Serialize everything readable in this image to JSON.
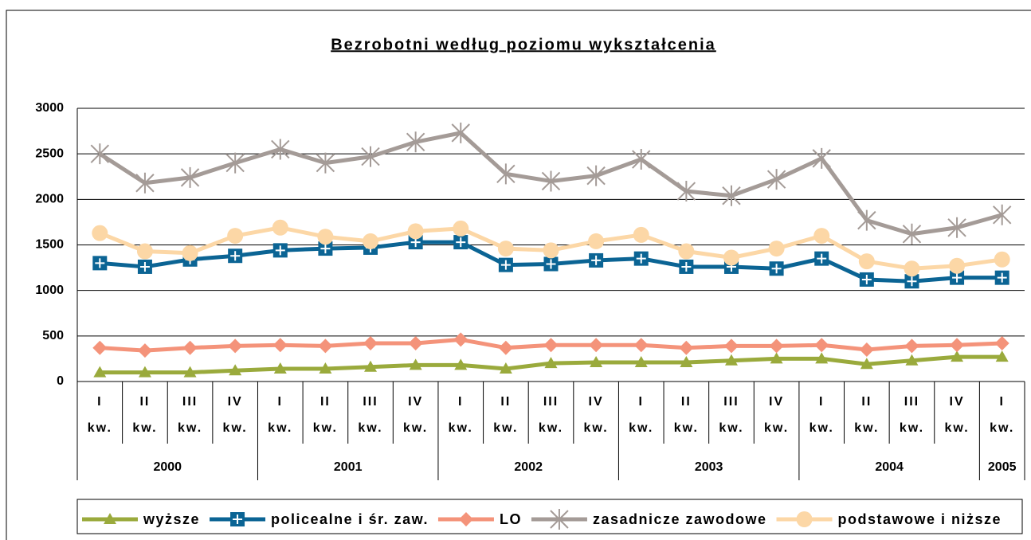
{
  "chart_data": {
    "type": "line",
    "title": "Bezrobotni według poziomu wykształcenia",
    "category_groups": [
      {
        "label": "2000",
        "categories": [
          "I kw.",
          "II kw.",
          "III kw.",
          "IV kw."
        ]
      },
      {
        "label": "2001",
        "categories": [
          "I kw.",
          "II kw.",
          "III kw.",
          "IV kw."
        ]
      },
      {
        "label": "2002",
        "categories": [
          "I kw.",
          "II kw.",
          "III kw.",
          "IV kw."
        ]
      },
      {
        "label": "2003",
        "categories": [
          "I kw.",
          "II kw.",
          "III kw.",
          "IV kw."
        ]
      },
      {
        "label": "2004",
        "categories": [
          "I kw.",
          "II kw.",
          "III kw.",
          "IV kw."
        ]
      },
      {
        "label": "2005",
        "categories": [
          "I kw."
        ]
      }
    ],
    "series": [
      {
        "name": "wyższe",
        "color": "#9aaa3c",
        "marker": "triangle",
        "values": [
          100,
          100,
          100,
          120,
          140,
          140,
          160,
          180,
          180,
          140,
          200,
          210,
          210,
          210,
          230,
          250,
          250,
          190,
          230,
          270,
          270
        ]
      },
      {
        "name": "policealne i śr. zaw.",
        "color": "#0b6494",
        "marker": "square-plus",
        "values": [
          1300,
          1260,
          1340,
          1380,
          1440,
          1460,
          1470,
          1530,
          1530,
          1280,
          1290,
          1330,
          1350,
          1260,
          1260,
          1240,
          1350,
          1120,
          1100,
          1140,
          1140
        ]
      },
      {
        "name": "LO",
        "color": "#f4937a",
        "marker": "diamond",
        "values": [
          370,
          340,
          370,
          390,
          400,
          390,
          420,
          420,
          460,
          370,
          400,
          400,
          400,
          370,
          390,
          390,
          400,
          350,
          390,
          400,
          420
        ]
      },
      {
        "name": "zasadnicze zawodowe",
        "color": "#a49b97",
        "marker": "star",
        "values": [
          2500,
          2180,
          2240,
          2400,
          2550,
          2400,
          2470,
          2630,
          2730,
          2280,
          2200,
          2260,
          2440,
          2090,
          2040,
          2220,
          2450,
          1770,
          1620,
          1690,
          1830
        ]
      },
      {
        "name": "podstawowe i niższe",
        "color": "#fcd7a6",
        "marker": "circle",
        "values": [
          1630,
          1430,
          1410,
          1600,
          1690,
          1590,
          1540,
          1650,
          1680,
          1460,
          1440,
          1540,
          1610,
          1430,
          1360,
          1460,
          1600,
          1320,
          1240,
          1270,
          1340
        ]
      }
    ],
    "ylim": [
      0,
      3000
    ],
    "yticks": [
      0,
      500,
      1000,
      1500,
      2000,
      2500,
      3000
    ],
    "grid": true,
    "legend": "bottom"
  }
}
